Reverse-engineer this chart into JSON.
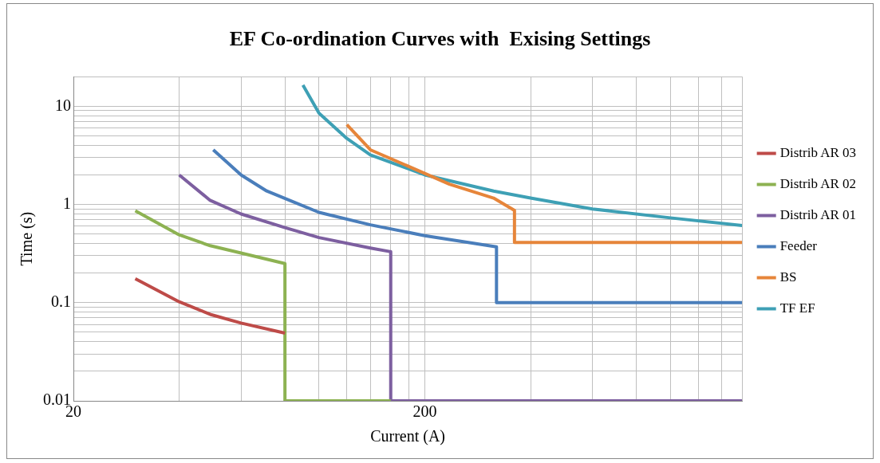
{
  "chart_data": {
    "type": "line",
    "title": "EF Co-ordination Curves with  Exising Settings",
    "xlabel": "Current (A)",
    "ylabel": "Time (s)",
    "log": "xy",
    "grid": true,
    "legend": "right",
    "marker": "none",
    "line_style": "solid",
    "xlim": [
      20,
      1600
    ],
    "ylim": [
      0.01,
      20
    ],
    "xticks": [
      20,
      {
        "value": 40,
        "label": null
      },
      {
        "value": 60,
        "label": null
      },
      {
        "value": 80,
        "label": null
      },
      {
        "value": 100,
        "label": null
      },
      {
        "value": 120,
        "label": null
      },
      {
        "value": 140,
        "label": null
      },
      {
        "value": 160,
        "label": null
      },
      {
        "value": 180,
        "label": null
      },
      200,
      {
        "value": 400,
        "label": null
      },
      {
        "value": 600,
        "label": null
      },
      {
        "value": 800,
        "label": null
      },
      {
        "value": 1000,
        "label": null
      },
      {
        "value": 1200,
        "label": null
      },
      {
        "value": 1400,
        "label": null
      },
      {
        "value": 1600,
        "label": null
      }
    ],
    "yticks": [
      0.01,
      {
        "value": 0.02,
        "label": null
      },
      {
        "value": 0.03,
        "label": null
      },
      {
        "value": 0.04,
        "label": null
      },
      {
        "value": 0.05,
        "label": null
      },
      {
        "value": 0.06,
        "label": null
      },
      {
        "value": 0.07,
        "label": null
      },
      {
        "value": 0.08,
        "label": null
      },
      {
        "value": 0.09,
        "label": null
      },
      0.1,
      {
        "value": 0.2,
        "label": null
      },
      {
        "value": 0.3,
        "label": null
      },
      {
        "value": 0.4,
        "label": null
      },
      {
        "value": 0.5,
        "label": null
      },
      {
        "value": 0.6,
        "label": null
      },
      {
        "value": 0.7,
        "label": null
      },
      {
        "value": 0.8,
        "label": null
      },
      {
        "value": 0.9,
        "label": null
      },
      1,
      {
        "value": 2,
        "label": null
      },
      {
        "value": 3,
        "label": null
      },
      {
        "value": 4,
        "label": null
      },
      {
        "value": 5,
        "label": null
      },
      {
        "value": 6,
        "label": null
      },
      {
        "value": 7,
        "label": null
      },
      {
        "value": 8,
        "label": null
      },
      {
        "value": 9,
        "label": null
      },
      10,
      {
        "value": 20,
        "label": null
      }
    ],
    "series": [
      {
        "name": "Distrib AR 03",
        "color": "#be4b48",
        "x": [
          30,
          40,
          49,
          60,
          80
        ],
        "values": [
          0.175,
          0.102,
          0.076,
          0.062,
          0.049
        ]
      },
      {
        "name": "Distrib AR 02",
        "color": "#8db252",
        "x": [
          30,
          40,
          49,
          60,
          80,
          80,
          160
        ],
        "values": [
          0.86,
          0.49,
          0.38,
          0.32,
          0.25,
          0.01,
          0.01
        ]
      },
      {
        "name": "Distrib AR 01",
        "color": "#7d5fa0",
        "x": [
          40,
          49,
          60,
          80,
          100,
          140,
          160,
          160,
          1600
        ],
        "values": [
          2.0,
          1.1,
          0.8,
          0.58,
          0.46,
          0.36,
          0.33,
          0.01,
          0.01
        ]
      },
      {
        "name": "Feeder",
        "color": "#4a7ebb",
        "x": [
          50,
          60,
          71,
          100,
          140,
          200,
          320,
          320,
          1600
        ],
        "values": [
          3.6,
          2.0,
          1.37,
          0.83,
          0.62,
          0.48,
          0.37,
          0.1,
          0.1
        ]
      },
      {
        "name": "BS",
        "color": "#e6853a",
        "x": [
          120,
          140,
          200,
          235,
          314,
          360,
          360,
          1600
        ],
        "values": [
          6.5,
          3.6,
          2.07,
          1.61,
          1.16,
          0.87,
          0.41,
          0.41
        ]
      },
      {
        "name": "TF EF",
        "color": "#3ea0b5",
        "x": [
          90,
          100,
          120,
          140,
          200,
          314,
          400,
          600,
          1000,
          1600
        ],
        "values": [
          16.4,
          8.5,
          4.7,
          3.2,
          2.0,
          1.37,
          1.16,
          0.9,
          0.73,
          0.61
        ]
      }
    ]
  }
}
